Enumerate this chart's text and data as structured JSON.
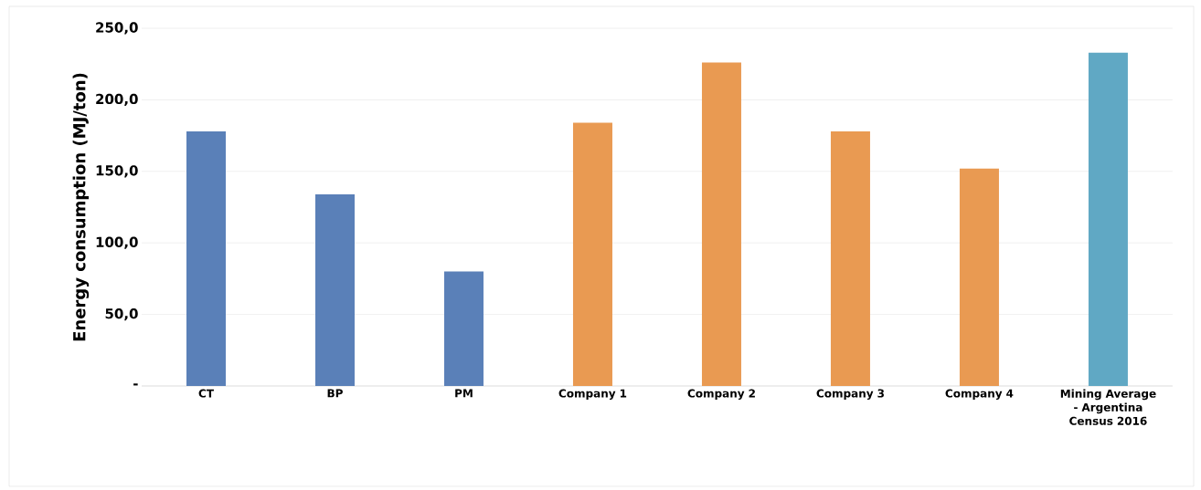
{
  "chart_data": {
    "type": "bar",
    "ylabel": "Energy consumption (MJ/ton)",
    "categories": [
      "CT",
      "BP",
      "PM",
      "Company 1",
      "Company 2",
      "Company 3",
      "Company 4",
      "Mining Average - Argentina Census 2016"
    ],
    "values": [
      178,
      134,
      80,
      184,
      226,
      178,
      152,
      233
    ],
    "colors": [
      "#5a80b8",
      "#5a80b8",
      "#5a80b8",
      "#e99a52",
      "#e99a52",
      "#e99a52",
      "#e99a52",
      "#60a8c4"
    ],
    "ylim": [
      0,
      250
    ],
    "yticks": [
      {
        "value": 0,
        "label": "-"
      },
      {
        "value": 50,
        "label": "50,0"
      },
      {
        "value": 100,
        "label": "100,0"
      },
      {
        "value": 150,
        "label": "150,0"
      },
      {
        "value": 200,
        "label": "200,0"
      },
      {
        "value": 250,
        "label": "250,0"
      }
    ],
    "grid": "y"
  }
}
